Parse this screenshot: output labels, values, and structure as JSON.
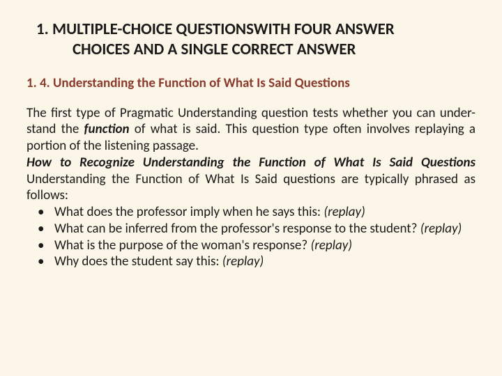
{
  "colors": {
    "background": "#fcf6e8",
    "text": "#1a1a1a",
    "subtitle": "#8b3a2e"
  },
  "typography": {
    "title_fontsize": 23,
    "subtitle_fontsize": 19,
    "body_fontsize": 19,
    "font_family": "Calibri"
  },
  "title": {
    "line1": "1.  MULTIPLE-CHOICE QUESTIONSWITH FOUR ANSWER",
    "line2": "CHOICES AND A SINGLE CORRECT ANSWER"
  },
  "subtitle": "1. 4. Understanding the Function of What Is Said Questions",
  "paragraph": {
    "part1": "The first type of Pragmatic Understanding question tests whether you can under- stand the ",
    "emph": "function",
    "part2": " of what is said. This question type often involves replaying a portion of the listening passage."
  },
  "subhead": {
    "bold_italic": "How to Recognize Understanding the Function of What Is Said Questions",
    "rest": "  Understanding  the  Function  of  What  Is  Said  questions  are  typically  phrased  as follows:"
  },
  "bullets": [
    {
      "text": "What does the professor imply when he says this: ",
      "tail": "(replay)"
    },
    {
      "text": "What  can  be  inferred  from  the  professor's  response  to the  student? ",
      "tail": "(replay)"
    },
    {
      "text": "What is the purpose of the woman's response? ",
      "tail": "(replay)"
    },
    {
      "text": "Why does the student say this: ",
      "tail": "(replay)"
    }
  ]
}
